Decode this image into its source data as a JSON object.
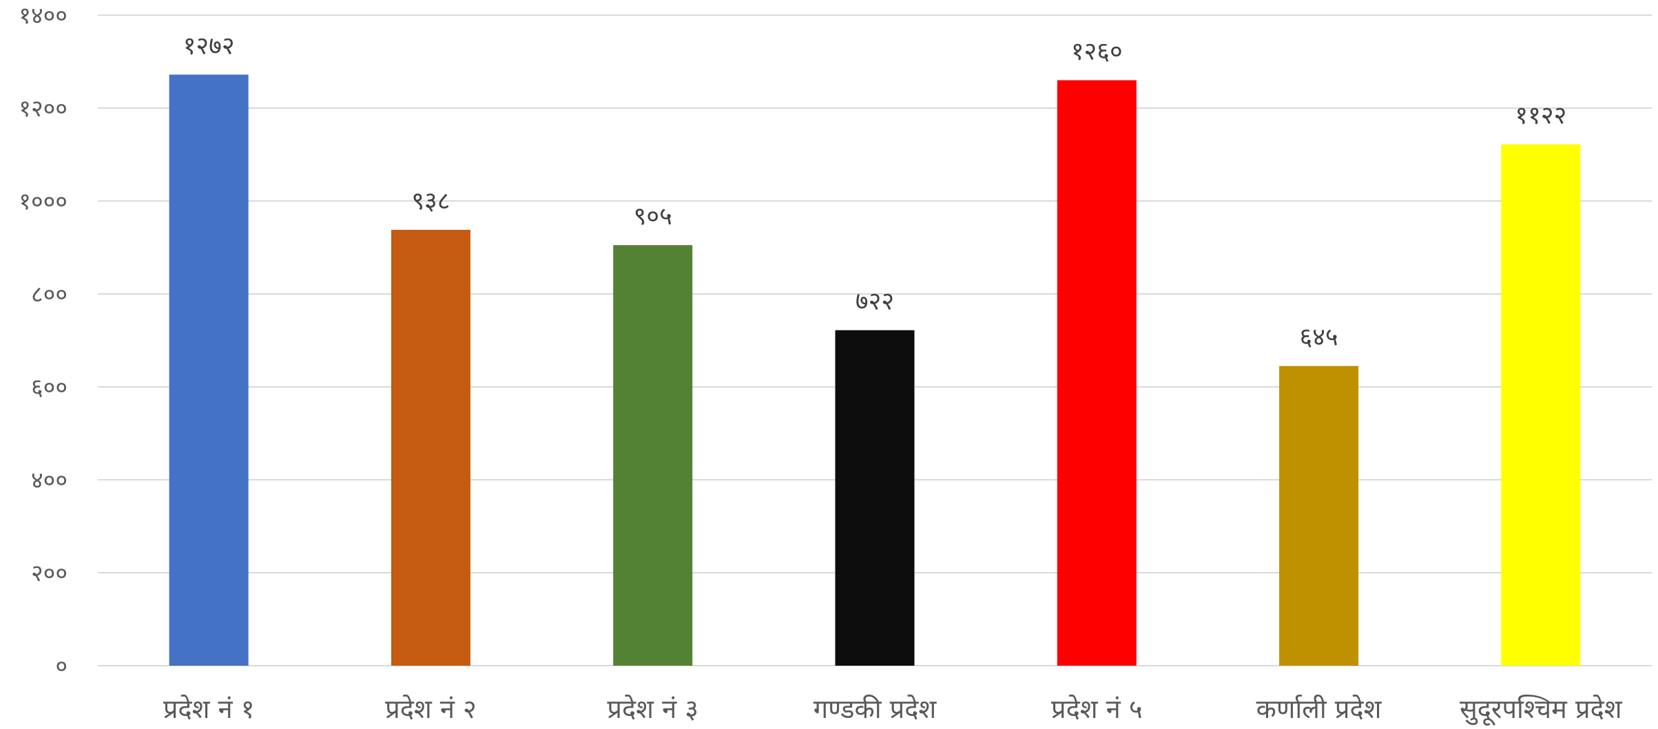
{
  "chart_data": {
    "type": "bar",
    "title": "",
    "xlabel": "",
    "ylabel": "",
    "ylim": [
      0,
      1400
    ],
    "y_ticks": [
      0,
      200,
      400,
      600,
      800,
      1000,
      1200,
      1400
    ],
    "y_tick_labels": [
      "०",
      "२००",
      "४००",
      "६००",
      "८००",
      "१०००",
      "१२००",
      "१४००"
    ],
    "grid": true,
    "legend": "none",
    "categories": [
      "प्रदेश नं १",
      "प्रदेश नं २",
      "प्रदेश नं ३",
      "गण्डकी प्रदेश",
      "प्रदेश नं ५",
      "कर्णाली प्रदेश",
      "सुदूरपश्चिम प्रदेश"
    ],
    "values": [
      1272,
      938,
      905,
      722,
      1260,
      645,
      1122
    ],
    "value_labels": [
      "१२७२",
      "९३८",
      "९०५",
      "७२२",
      "१२६०",
      "६४५",
      "११२२"
    ],
    "colors": [
      "#4472C4",
      "#C55A11",
      "#548235",
      "#0D0D0D",
      "#FF0000",
      "#BF9000",
      "#FFFF00"
    ]
  }
}
